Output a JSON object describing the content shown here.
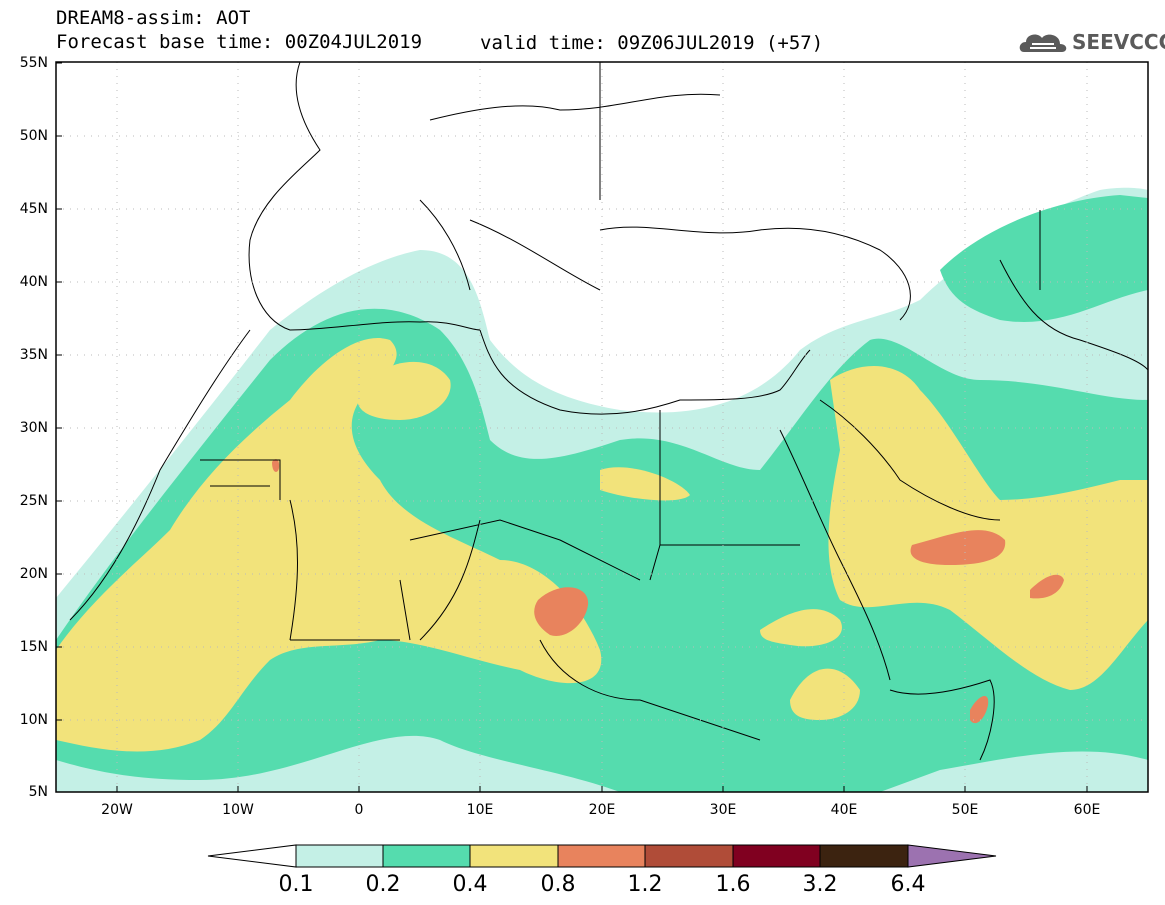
{
  "header": {
    "line1": "DREAM8-assim: AOT",
    "line2": "Forecast base time: 00Z04JUL2019",
    "valid": "valid time: 09Z06JUL2019 (+57)"
  },
  "logo": {
    "text": "SEEVCCC",
    "color": "#5a5a5a"
  },
  "axes": {
    "lat_labels": [
      "55N",
      "50N",
      "45N",
      "40N",
      "35N",
      "30N",
      "25N",
      "20N",
      "15N",
      "10N",
      "5N"
    ],
    "lon_labels": [
      "20W",
      "10W",
      "0",
      "10E",
      "20E",
      "30E",
      "40E",
      "50E",
      "60E"
    ],
    "lat_range": [
      5,
      55
    ],
    "lon_range": [
      -25,
      65
    ],
    "grid": true
  },
  "colorbar": {
    "levels": [
      "0.1",
      "0.2",
      "0.4",
      "0.8",
      "1.2",
      "1.6",
      "3.2",
      "6.4"
    ],
    "colors": [
      "#ffffff",
      "#c4f0e6",
      "#55dcae",
      "#f2e37b",
      "#e8835d",
      "#b04c38",
      "#800020",
      "#3c2310",
      "#9c72b0"
    ]
  },
  "legend_colors": {
    "c01": "#c4f0e6",
    "c02": "#55dcae",
    "c04": "#f2e37b",
    "c08": "#e8835d"
  }
}
